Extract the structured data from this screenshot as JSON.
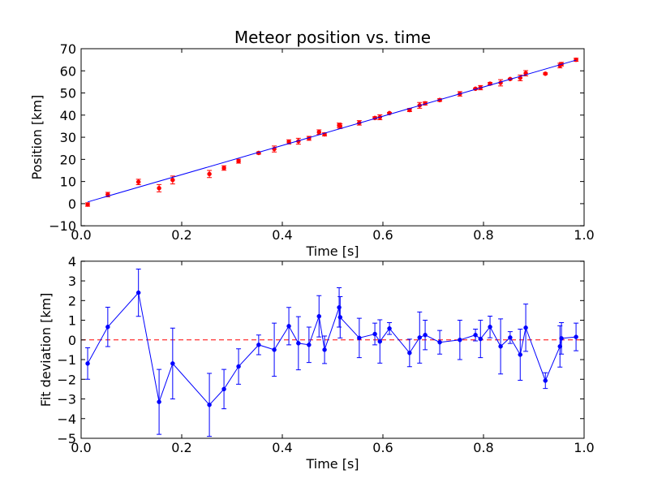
{
  "chart_data": [
    {
      "type": "scatter",
      "title": "Meteor position vs. time",
      "xlabel": "Time [s]",
      "ylabel": "Position [km]",
      "xlim": [
        0,
        1.0
      ],
      "ylim": [
        -10,
        70
      ],
      "xticks": [
        "0.0",
        "0.2",
        "0.4",
        "0.6",
        "0.8",
        "1.0"
      ],
      "yticks": [
        "−10",
        "0",
        "10",
        "20",
        "30",
        "40",
        "50",
        "60",
        "70"
      ],
      "grid": false,
      "series": [
        {
          "color": "#ff0000",
          "marker": true,
          "connected": false,
          "x": [
            0.013,
            0.053,
            0.114,
            0.155,
            0.182,
            0.255,
            0.284,
            0.313,
            0.353,
            0.384,
            0.413,
            0.432,
            0.453,
            0.473,
            0.484,
            0.513,
            0.515,
            0.553,
            0.584,
            0.594,
            0.613,
            0.653,
            0.673,
            0.684,
            0.713,
            0.753,
            0.784,
            0.794,
            0.813,
            0.834,
            0.853,
            0.873,
            0.884,
            0.923,
            0.952,
            0.955,
            0.984
          ],
          "y": [
            -0.4,
            4.1,
            9.8,
            7.0,
            10.7,
            13.4,
            16.1,
            19.2,
            22.9,
            24.7,
            27.9,
            28.2,
            29.5,
            32.3,
            31.3,
            35.4,
            35.0,
            36.5,
            38.7,
            39.0,
            40.9,
            42.3,
            44.4,
            45.3,
            46.8,
            49.6,
            51.9,
            52.4,
            54.2,
            54.6,
            56.3,
            56.8,
            58.9,
            58.7,
            62.4,
            63.0,
            65.0
          ],
          "yerr": [
            0.8,
            1.0,
            1.2,
            1.65,
            1.8,
            1.6,
            1.0,
            0.9,
            0.5,
            1.35,
            0.95,
            1.35,
            0.9,
            1.05,
            0.7,
            1.0,
            1.05,
            1.0,
            0.55,
            1.1,
            0.3,
            0.7,
            1.3,
            0.75,
            0.6,
            1.0,
            0.3,
            0.95,
            0.55,
            1.4,
            0.3,
            1.3,
            1.2,
            0.4,
            1.05,
            0.8,
            0.7
          ]
        },
        {
          "color": "#0000ff",
          "marker": false,
          "connected": true,
          "x": [
            0.013,
            0.984
          ],
          "y": [
            0.76,
            64.84
          ]
        }
      ]
    },
    {
      "type": "line",
      "xlabel": "Time [s]",
      "ylabel": "Fit deviation [km]",
      "xlim": [
        0,
        1.0
      ],
      "ylim": [
        -5,
        4
      ],
      "xticks": [
        "0.0",
        "0.2",
        "0.4",
        "0.6",
        "0.8",
        "1.0"
      ],
      "yticks": [
        "−5",
        "−4",
        "−3",
        "−2",
        "−1",
        "0",
        "1",
        "2",
        "3",
        "4"
      ],
      "grid": false,
      "reference_lines": [
        {
          "y": 0,
          "color": "#ff0000",
          "dashed": true
        }
      ],
      "series": [
        {
          "color": "#0000ff",
          "marker": true,
          "connected": true,
          "x": [
            0.013,
            0.053,
            0.114,
            0.155,
            0.182,
            0.255,
            0.284,
            0.313,
            0.353,
            0.384,
            0.413,
            0.432,
            0.453,
            0.473,
            0.484,
            0.513,
            0.515,
            0.553,
            0.584,
            0.594,
            0.613,
            0.653,
            0.673,
            0.684,
            0.713,
            0.753,
            0.784,
            0.794,
            0.813,
            0.834,
            0.853,
            0.873,
            0.884,
            0.923,
            0.952,
            0.955,
            0.984
          ],
          "y": [
            -1.2,
            0.66,
            2.4,
            -3.15,
            -1.2,
            -3.3,
            -2.5,
            -1.35,
            -0.25,
            -0.5,
            0.7,
            -0.17,
            -0.25,
            1.2,
            -0.5,
            1.65,
            1.15,
            0.1,
            0.3,
            -0.08,
            0.58,
            -0.66,
            0.12,
            0.25,
            -0.12,
            0.0,
            0.25,
            0.05,
            0.66,
            -0.33,
            0.12,
            -0.75,
            0.62,
            -2.07,
            -0.33,
            0.08,
            0.15
          ],
          "yerr": [
            0.8,
            1.0,
            1.2,
            1.65,
            1.8,
            1.6,
            1.0,
            0.9,
            0.5,
            1.35,
            0.95,
            1.35,
            0.9,
            1.05,
            0.7,
            1.0,
            1.05,
            1.0,
            0.55,
            1.1,
            0.3,
            0.7,
            1.3,
            0.75,
            0.6,
            1.0,
            0.3,
            0.95,
            0.55,
            1.4,
            0.3,
            1.3,
            1.2,
            0.4,
            1.05,
            0.8,
            0.7
          ]
        }
      ]
    }
  ]
}
